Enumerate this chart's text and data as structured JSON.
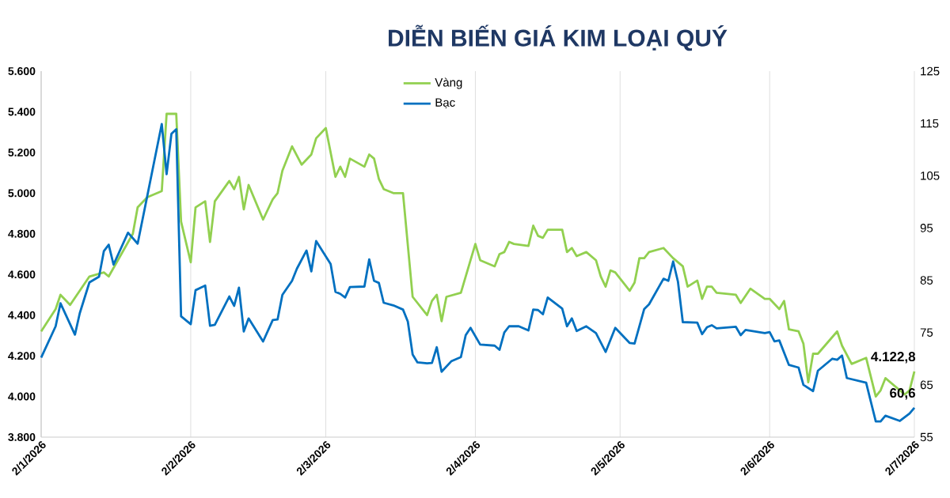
{
  "chart_data": {
    "type": "line",
    "title": "DIỄN BIẾN GIÁ KIM LOẠI QUÝ",
    "xlim": [
      "2026-01-02",
      "2026-07-02"
    ],
    "xticks": [
      {
        "value": "2026-01-02",
        "label": "2/1/2026"
      },
      {
        "value": "2026-02-02",
        "label": "2/2/2026"
      },
      {
        "value": "2026-03-02",
        "label": "2/3/2026"
      },
      {
        "value": "2026-04-02",
        "label": "2/4/2026"
      },
      {
        "value": "2026-05-02",
        "label": "2/5/2026"
      },
      {
        "value": "2026-06-02",
        "label": "2/6/2026"
      },
      {
        "value": "2026-07-02",
        "label": "2/7/2026"
      }
    ],
    "ylim": [
      3800,
      5600
    ],
    "yticks": [
      {
        "value": 3800,
        "label": "3.800"
      },
      {
        "value": 4000,
        "label": "4.000"
      },
      {
        "value": 4200,
        "label": "4.200"
      },
      {
        "value": 4400,
        "label": "4.400"
      },
      {
        "value": 4600,
        "label": "4.600"
      },
      {
        "value": 4800,
        "label": "4.800"
      },
      {
        "value": 5000,
        "label": "5.000"
      },
      {
        "value": 5200,
        "label": "5.200"
      },
      {
        "value": 5400,
        "label": "5.400"
      },
      {
        "value": 5600,
        "label": "5.600"
      }
    ],
    "y2lim": [
      55,
      125
    ],
    "y2ticks": [
      55,
      65,
      75,
      85,
      95,
      105,
      115,
      125
    ],
    "grid": "x",
    "legend": "top",
    "series": [
      {
        "name": "Vàng",
        "color": "#92d050",
        "x": [
          "2026-01-02",
          "2026-01-05",
          "2026-01-06",
          "2026-01-08",
          "2026-01-12",
          "2026-01-15",
          "2026-01-16",
          "2026-01-21",
          "2026-01-22",
          "2026-01-24",
          "2026-01-27",
          "2026-01-28",
          "2026-01-30",
          "2026-01-31",
          "2026-02-02",
          "2026-02-03",
          "2026-02-05",
          "2026-02-06",
          "2026-02-07",
          "2026-02-10",
          "2026-02-11",
          "2026-02-12",
          "2026-02-13",
          "2026-02-14",
          "2026-02-17",
          "2026-02-19",
          "2026-02-20",
          "2026-02-21",
          "2026-02-23",
          "2026-02-25",
          "2026-02-27",
          "2026-02-28",
          "2026-03-02",
          "2026-03-04",
          "2026-03-05",
          "2026-03-06",
          "2026-03-07",
          "2026-03-10",
          "2026-03-11",
          "2026-03-12",
          "2026-03-13",
          "2026-03-14",
          "2026-03-16",
          "2026-03-18",
          "2026-03-20",
          "2026-03-23",
          "2026-03-24",
          "2026-03-25",
          "2026-03-26",
          "2026-03-27",
          "2026-03-30",
          "2026-04-01",
          "2026-04-02",
          "2026-04-03",
          "2026-04-06",
          "2026-04-07",
          "2026-04-08",
          "2026-04-09",
          "2026-04-10",
          "2026-04-13",
          "2026-04-14",
          "2026-04-15",
          "2026-04-16",
          "2026-04-17",
          "2026-04-20",
          "2026-04-21",
          "2026-04-22",
          "2026-04-23",
          "2026-04-25",
          "2026-04-27",
          "2026-04-28",
          "2026-04-29",
          "2026-04-30",
          "2026-05-01",
          "2026-05-04",
          "2026-05-05",
          "2026-05-06",
          "2026-05-07",
          "2026-05-08",
          "2026-05-11",
          "2026-05-13",
          "2026-05-15",
          "2026-05-16",
          "2026-05-18",
          "2026-05-19",
          "2026-05-20",
          "2026-05-21",
          "2026-05-22",
          "2026-05-26",
          "2026-05-27",
          "2026-05-29",
          "2026-06-01",
          "2026-06-02",
          "2026-06-04",
          "2026-06-05",
          "2026-06-06",
          "2026-06-08",
          "2026-06-09",
          "2026-06-10",
          "2026-06-11",
          "2026-06-12",
          "2026-06-16",
          "2026-06-17",
          "2026-06-19",
          "2026-06-22",
          "2026-06-24",
          "2026-06-25",
          "2026-06-26",
          "2026-06-30",
          "2026-07-01",
          "2026-07-02"
        ],
        "values": [
          4320,
          4430,
          4500,
          4450,
          4590,
          4610,
          4590,
          4800,
          4930,
          4980,
          5010,
          5390,
          5390,
          4860,
          4660,
          4930,
          4960,
          4760,
          4960,
          5060,
          5020,
          5080,
          4920,
          5040,
          4870,
          4970,
          5000,
          5110,
          5230,
          5140,
          5190,
          5270,
          5320,
          5080,
          5130,
          5080,
          5170,
          5130,
          5190,
          5170,
          5070,
          5020,
          5000,
          5000,
          4490,
          4400,
          4470,
          4500,
          4370,
          4490,
          4510,
          4670,
          4750,
          4670,
          4640,
          4700,
          4710,
          4760,
          4750,
          4740,
          4840,
          4790,
          4780,
          4820,
          4820,
          4710,
          4730,
          4690,
          4710,
          4670,
          4590,
          4540,
          4620,
          4610,
          4520,
          4560,
          4680,
          4680,
          4710,
          4730,
          4680,
          4640,
          4540,
          4570,
          4480,
          4540,
          4540,
          4510,
          4500,
          4460,
          4530,
          4480,
          4480,
          4430,
          4470,
          4330,
          4320,
          4260,
          4070,
          4210,
          4210,
          4320,
          4250,
          4160,
          4190,
          4000,
          4030,
          4090,
          4010,
          4030,
          4122.8
        ],
        "value_labels": [
          null,
          null,
          null,
          null,
          null,
          null,
          null,
          null,
          null,
          null,
          null,
          null,
          null,
          null,
          null,
          null,
          null,
          null,
          null,
          null,
          null,
          null,
          null,
          null,
          null,
          null,
          null,
          null,
          null,
          null,
          null,
          null,
          null,
          null,
          null,
          null,
          null,
          null,
          null,
          null,
          null,
          null,
          null,
          null,
          null,
          null,
          null,
          null,
          null,
          null,
          null,
          null,
          null,
          null,
          null,
          null,
          null,
          null,
          null,
          null,
          null,
          null,
          null,
          null,
          null,
          null,
          null,
          null,
          null,
          null,
          null,
          null,
          null,
          null,
          null,
          null,
          null,
          null,
          null,
          null,
          null,
          null,
          null,
          null,
          null,
          null,
          null,
          null,
          null,
          null,
          null,
          null,
          null,
          null,
          null,
          null,
          null,
          null,
          null,
          null,
          null,
          null,
          null,
          null,
          null,
          null,
          null,
          null,
          null,
          null,
          "4.122,8"
        ]
      },
      {
        "name": "Bạc",
        "color": "#0070c0",
        "axis": "y2",
        "x": [
          "2026-01-02",
          "2026-01-05",
          "2026-01-06",
          "2026-01-09",
          "2026-01-10",
          "2026-01-12",
          "2026-01-14",
          "2026-01-15",
          "2026-01-16",
          "2026-01-17",
          "2026-01-20",
          "2026-01-22",
          "2026-01-27",
          "2026-01-28",
          "2026-01-29",
          "2026-01-30",
          "2026-01-31",
          "2026-02-02",
          "2026-02-03",
          "2026-02-05",
          "2026-02-06",
          "2026-02-07",
          "2026-02-10",
          "2026-02-11",
          "2026-02-12",
          "2026-02-13",
          "2026-02-14",
          "2026-02-17",
          "2026-02-19",
          "2026-02-20",
          "2026-02-21",
          "2026-02-23",
          "2026-02-24",
          "2026-02-26",
          "2026-02-27",
          "2026-02-28",
          "2026-03-03",
          "2026-03-04",
          "2026-03-05",
          "2026-03-06",
          "2026-03-07",
          "2026-03-10",
          "2026-03-11",
          "2026-03-12",
          "2026-03-13",
          "2026-03-14",
          "2026-03-16",
          "2026-03-18",
          "2026-03-19",
          "2026-03-20",
          "2026-03-21",
          "2026-03-23",
          "2026-03-24",
          "2026-03-25",
          "2026-03-26",
          "2026-03-28",
          "2026-03-30",
          "2026-03-31",
          "2026-04-01",
          "2026-04-03",
          "2026-04-06",
          "2026-04-07",
          "2026-04-08",
          "2026-04-09",
          "2026-04-11",
          "2026-04-13",
          "2026-04-14",
          "2026-04-15",
          "2026-04-16",
          "2026-04-17",
          "2026-04-20",
          "2026-04-21",
          "2026-04-22",
          "2026-04-23",
          "2026-04-25",
          "2026-04-27",
          "2026-04-29",
          "2026-05-01",
          "2026-05-04",
          "2026-05-05",
          "2026-05-07",
          "2026-05-08",
          "2026-05-11",
          "2026-05-12",
          "2026-05-13",
          "2026-05-14",
          "2026-05-15",
          "2026-05-18",
          "2026-05-19",
          "2026-05-20",
          "2026-05-21",
          "2026-05-22",
          "2026-05-26",
          "2026-05-27",
          "2026-05-28",
          "2026-06-01",
          "2026-06-02",
          "2026-06-03",
          "2026-06-04",
          "2026-06-06",
          "2026-06-08",
          "2026-06-09",
          "2026-06-11",
          "2026-06-12",
          "2026-06-15",
          "2026-06-16",
          "2026-06-17",
          "2026-06-18",
          "2026-06-22",
          "2026-06-24",
          "2026-06-25",
          "2026-06-26",
          "2026-06-29",
          "2026-07-01",
          "2026-07-02"
        ],
        "values": [
          70.2,
          76.2,
          80.6,
          74.6,
          78.7,
          84.6,
          85.7,
          90.6,
          91.8,
          88.0,
          94.1,
          92.0,
          114.9,
          105.3,
          113.0,
          113.9,
          78.1,
          76.6,
          83.1,
          84.0,
          76.3,
          76.5,
          81.9,
          80.1,
          83.6,
          75.2,
          77.7,
          73.3,
          77.4,
          77.5,
          82.2,
          84.9,
          87.2,
          90.7,
          86.7,
          92.5,
          88.1,
          82.8,
          82.4,
          81.7,
          83.7,
          83.8,
          89.0,
          84.9,
          84.5,
          80.7,
          80.2,
          79.4,
          77.1,
          70.8,
          69.3,
          69.1,
          69.2,
          72.2,
          67.5,
          69.5,
          70.3,
          74.5,
          75.9,
          72.7,
          72.5,
          71.7,
          75.0,
          76.2,
          76.2,
          75.4,
          79.4,
          79.3,
          78.5,
          81.7,
          79.6,
          76.2,
          77.7,
          75.3,
          76.2,
          74.9,
          71.3,
          75.9,
          73.0,
          72.9,
          79.5,
          80.4,
          85.3,
          84.9,
          88.6,
          84.7,
          77.0,
          76.9,
          74.7,
          76.0,
          76.4,
          75.8,
          76.1,
          74.5,
          75.5,
          74.9,
          75.1,
          73.3,
          73.5,
          68.8,
          68.3,
          65.0,
          63.8,
          67.7,
          70.0,
          69.8,
          70.6,
          66.3,
          65.4,
          58.0,
          58.0,
          59.1,
          58.1,
          59.5,
          60.6
        ],
        "value_labels": [
          null,
          null,
          null,
          null,
          null,
          null,
          null,
          null,
          null,
          null,
          null,
          null,
          null,
          null,
          null,
          null,
          null,
          null,
          null,
          null,
          null,
          null,
          null,
          null,
          null,
          null,
          null,
          null,
          null,
          null,
          null,
          null,
          null,
          null,
          null,
          null,
          null,
          null,
          null,
          null,
          null,
          null,
          null,
          null,
          null,
          null,
          null,
          null,
          null,
          null,
          null,
          null,
          null,
          null,
          null,
          null,
          null,
          null,
          null,
          null,
          null,
          null,
          null,
          null,
          null,
          null,
          null,
          null,
          null,
          null,
          null,
          null,
          null,
          null,
          null,
          null,
          null,
          null,
          null,
          null,
          null,
          null,
          null,
          null,
          null,
          null,
          null,
          null,
          null,
          null,
          null,
          null,
          null,
          null,
          null,
          null,
          null,
          null,
          null,
          null,
          null,
          null,
          null,
          null,
          null,
          null,
          null,
          null,
          null,
          null,
          null,
          null,
          null,
          null,
          "60,6"
        ]
      }
    ]
  }
}
